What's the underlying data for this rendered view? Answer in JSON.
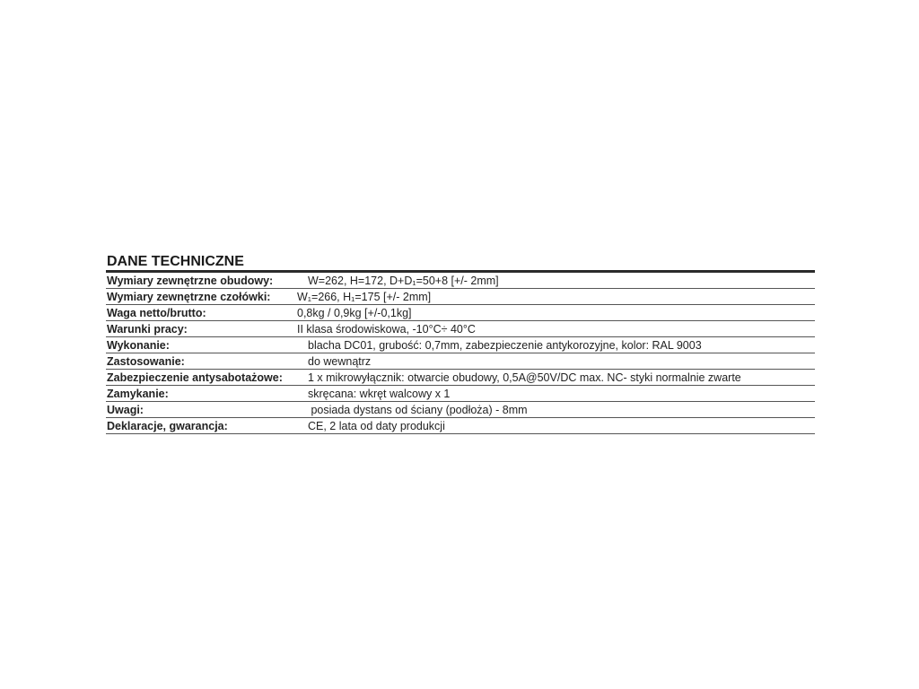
{
  "title": "DANE TECHNICZNE",
  "rows": [
    {
      "label": "Wymiary zewnętrzne obudowy:",
      "value": "W=262, H=172, D+D₁=50+8 [+/- 2mm]"
    },
    {
      "label": "Wymiary zewnętrzne czołówki:",
      "value": "W₁=266, H₁=175 [+/- 2mm]"
    },
    {
      "label": "Waga netto/brutto:",
      "value": "0,8kg / 0,9kg [+/-0,1kg]"
    },
    {
      "label": "Warunki pracy:",
      "value": "II klasa środowiskowa, -10°C÷ 40°C"
    },
    {
      "label": "Wykonanie:",
      "value": "blacha DC01, grubość: 0,7mm, zabezpieczenie antykorozyjne, kolor: RAL 9003"
    },
    {
      "label": "Zastosowanie:",
      "value": "do wewnątrz"
    },
    {
      "label": "Zabezpieczenie antysabotażowe:",
      "value": "1 x mikrowyłącznik: otwarcie obudowy, 0,5A@50V/DC max. NC- styki normalnie zwarte"
    },
    {
      "label": "Zamykanie:",
      "value": "skręcana: wkręt walcowy x 1"
    },
    {
      "label": "Uwagi:",
      "value": " posiada dystans od ściany (podłoża) - 8mm"
    },
    {
      "label": "Deklaracje, gwarancja:",
      "value": "CE, 2 lata od daty produkcji"
    }
  ]
}
